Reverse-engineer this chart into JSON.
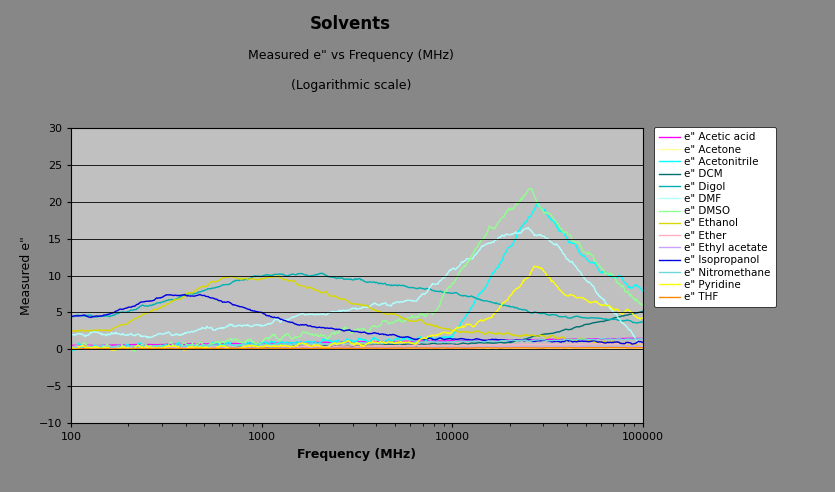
{
  "title": "Solvents",
  "subtitle1": "Measured e\" vs Frequency (MHz)",
  "subtitle2": "(Logarithmic scale)",
  "xlabel": "Frequency (MHz)",
  "ylabel": "Measured e\"",
  "xlim": [
    100,
    100000
  ],
  "ylim": [
    -10,
    30
  ],
  "yticks": [
    -10,
    -5,
    0,
    5,
    10,
    15,
    20,
    25,
    30
  ],
  "fig_bg_color": "#878787",
  "plot_bg_color": "#c0c0c0",
  "legend_entries": [
    "e\" Acetic acid",
    "e\" Acetone",
    "e\" Acetonitrile",
    "e\" DCM",
    "e\" Digol",
    "e\" DMF",
    "e\" DMSO",
    "e\" Ethanol",
    "e\" Ether",
    "e\" Ethyl acetate",
    "e\" Isopropanol",
    "e\" Nitromethane",
    "e\" Pyridine",
    "e\" THF"
  ],
  "line_colors": [
    "#ff00ff",
    "#ffffa0",
    "#00ffff",
    "#007070",
    "#00b0b0",
    "#b0ffff",
    "#90ff90",
    "#d8d800",
    "#ffb0c0",
    "#c8a0ff",
    "#0000e0",
    "#70d8d8",
    "#ffff00",
    "#ff8800"
  ]
}
